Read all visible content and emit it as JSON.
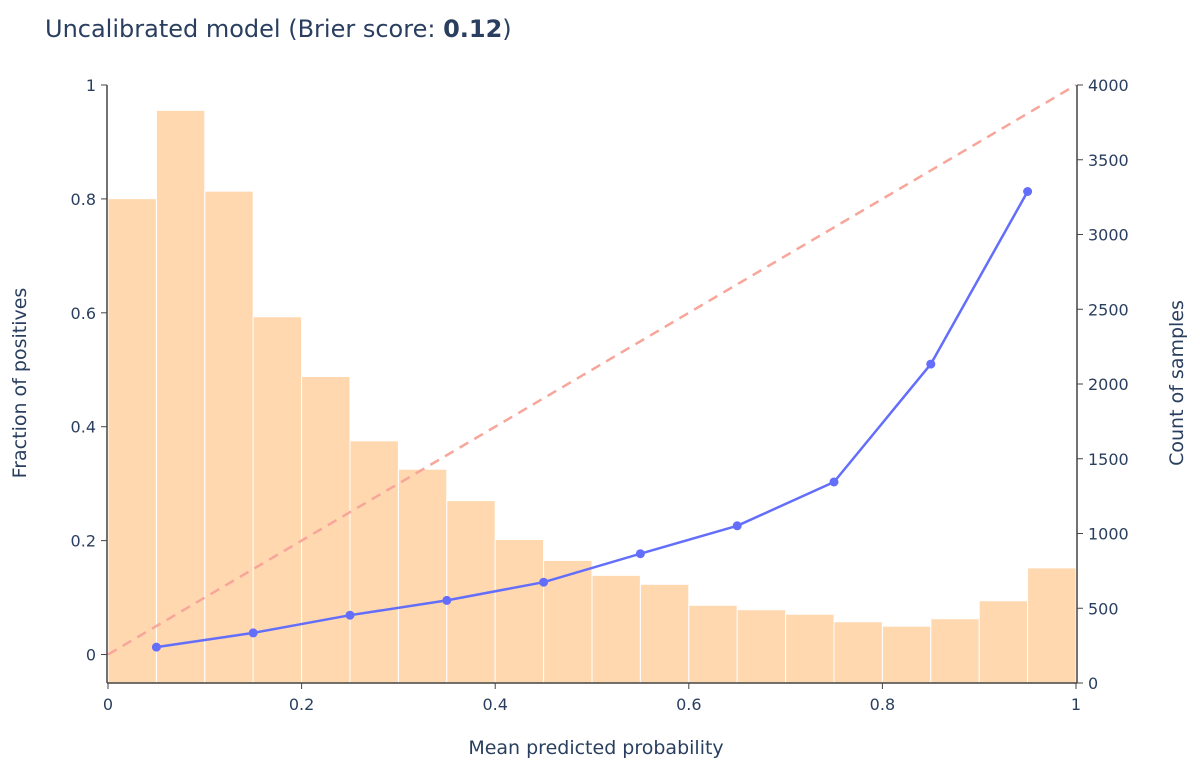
{
  "chart_data": {
    "type": "bar",
    "title_prefix": "Uncalibrated model (Brier score: ",
    "title_value": "0.12",
    "title_suffix": ")",
    "xlabel": "Mean predicted probability",
    "ylabel": "Fraction of positives",
    "y2label": "Count of samples",
    "xlim": [
      0,
      1
    ],
    "ylim": [
      -0.05,
      1
    ],
    "y2lim": [
      0,
      4000
    ],
    "x_ticks": [
      0,
      0.2,
      0.4,
      0.6,
      0.8,
      1
    ],
    "x_tick_labels": [
      "0",
      "0.2",
      "0.4",
      "0.6",
      "0.8",
      "1"
    ],
    "y_ticks": [
      0,
      0.2,
      0.4,
      0.6,
      0.8,
      1
    ],
    "y_tick_labels": [
      "0",
      "0.2",
      "0.4",
      "0.6",
      "0.8",
      "1"
    ],
    "y2_ticks": [
      0,
      500,
      1000,
      1500,
      2000,
      2500,
      3000,
      3500,
      4000
    ],
    "y2_tick_labels": [
      "0",
      "500",
      "1000",
      "1500",
      "2000",
      "2500",
      "3000",
      "3500",
      "4000"
    ],
    "grid": false,
    "histogram": {
      "bin_edges": [
        0,
        0.05,
        0.1,
        0.15,
        0.2,
        0.25,
        0.3,
        0.35,
        0.4,
        0.45,
        0.5,
        0.55,
        0.6,
        0.65,
        0.7,
        0.75,
        0.8,
        0.85,
        0.9,
        0.95,
        1
      ],
      "counts": [
        3240,
        3830,
        3290,
        2450,
        2050,
        1620,
        1430,
        1220,
        960,
        820,
        720,
        660,
        520,
        490,
        460,
        410,
        380,
        430,
        550,
        770
      ],
      "color": "#ffd8b0"
    },
    "calibration_curve": {
      "x": [
        0.05,
        0.15,
        0.25,
        0.35,
        0.45,
        0.55,
        0.65,
        0.75,
        0.85,
        0.95
      ],
      "y": [
        0.013,
        0.038,
        0.069,
        0.095,
        0.127,
        0.177,
        0.226,
        0.303,
        0.51,
        0.813
      ],
      "color": "#636efa"
    },
    "reference_line": {
      "x": [
        0,
        1
      ],
      "y": [
        0,
        1
      ],
      "color": "#f8a59a",
      "dash": "dashed"
    }
  }
}
